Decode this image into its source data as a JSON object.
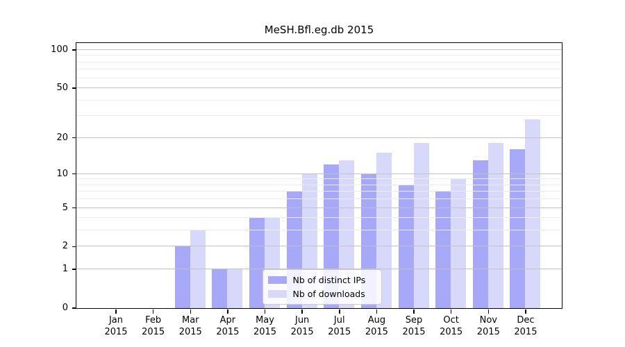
{
  "chart_data": {
    "type": "bar",
    "title": "MeSH.Bfl.eg.db 2015",
    "categories": [
      "Jan",
      "Feb",
      "Mar",
      "Apr",
      "May",
      "Jun",
      "Jul",
      "Aug",
      "Sep",
      "Oct",
      "Nov",
      "Dec"
    ],
    "year_label": "2015",
    "series": [
      {
        "name": "Nb of distinct IPs",
        "color": "#a8a8f8",
        "values": [
          0,
          0,
          2,
          1,
          4,
          7,
          12,
          10,
          8,
          7,
          13,
          16
        ]
      },
      {
        "name": "Nb of downloads",
        "color": "#d8d8fa",
        "values": [
          0,
          0,
          3,
          1,
          4,
          10,
          13,
          15,
          18,
          9,
          18,
          28
        ]
      }
    ],
    "xlabel": "",
    "ylabel": "",
    "y_axis": {
      "scale": "log1p",
      "major_ticks": [
        0,
        1,
        2,
        5,
        10,
        20,
        50,
        100
      ],
      "minor_gridlines": [
        3,
        4,
        6,
        7,
        8,
        9,
        30,
        40,
        60,
        70,
        80,
        90
      ],
      "ylim": [
        0,
        113
      ]
    },
    "legend": {
      "position": "lower-center"
    },
    "grid": true
  }
}
